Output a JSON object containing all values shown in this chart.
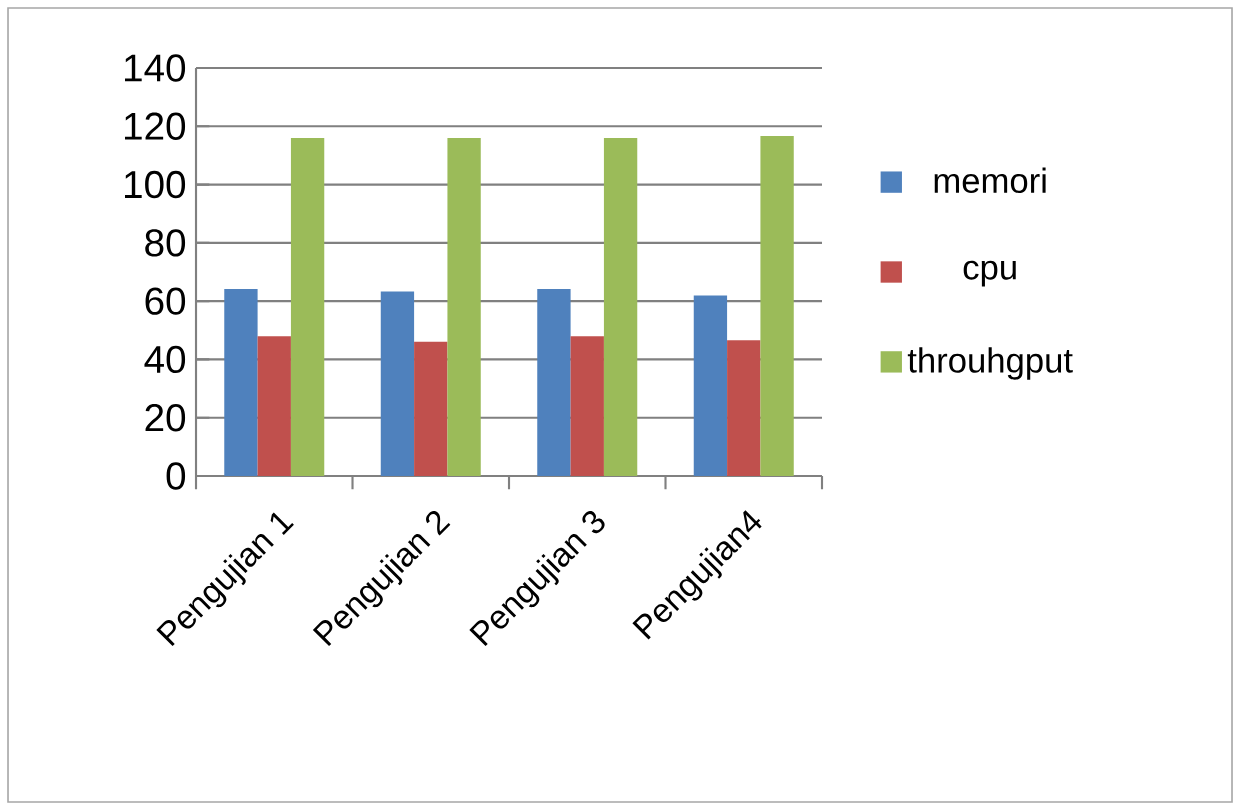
{
  "chart_data": {
    "type": "bar",
    "categories": [
      "Pengujian 1",
      "Pengujian 2",
      "Pengujian 3",
      "Pengujian4"
    ],
    "series": [
      {
        "name": "memori",
        "color": "#4f81bd",
        "values": [
          64.2,
          63.3,
          64.2,
          61.9
        ]
      },
      {
        "name": "cpu",
        "color": "#c0504d",
        "values": [
          48.0,
          46.1,
          48.0,
          46.6
        ]
      },
      {
        "name": "throuhgput",
        "color": "#9bbb59",
        "values": [
          116.0,
          116.0,
          116.0,
          116.7
        ]
      }
    ],
    "ylim": [
      0,
      140
    ],
    "yticks": [
      0,
      20,
      40,
      60,
      80,
      100,
      120,
      140
    ],
    "grid": "y",
    "legend": "right"
  }
}
